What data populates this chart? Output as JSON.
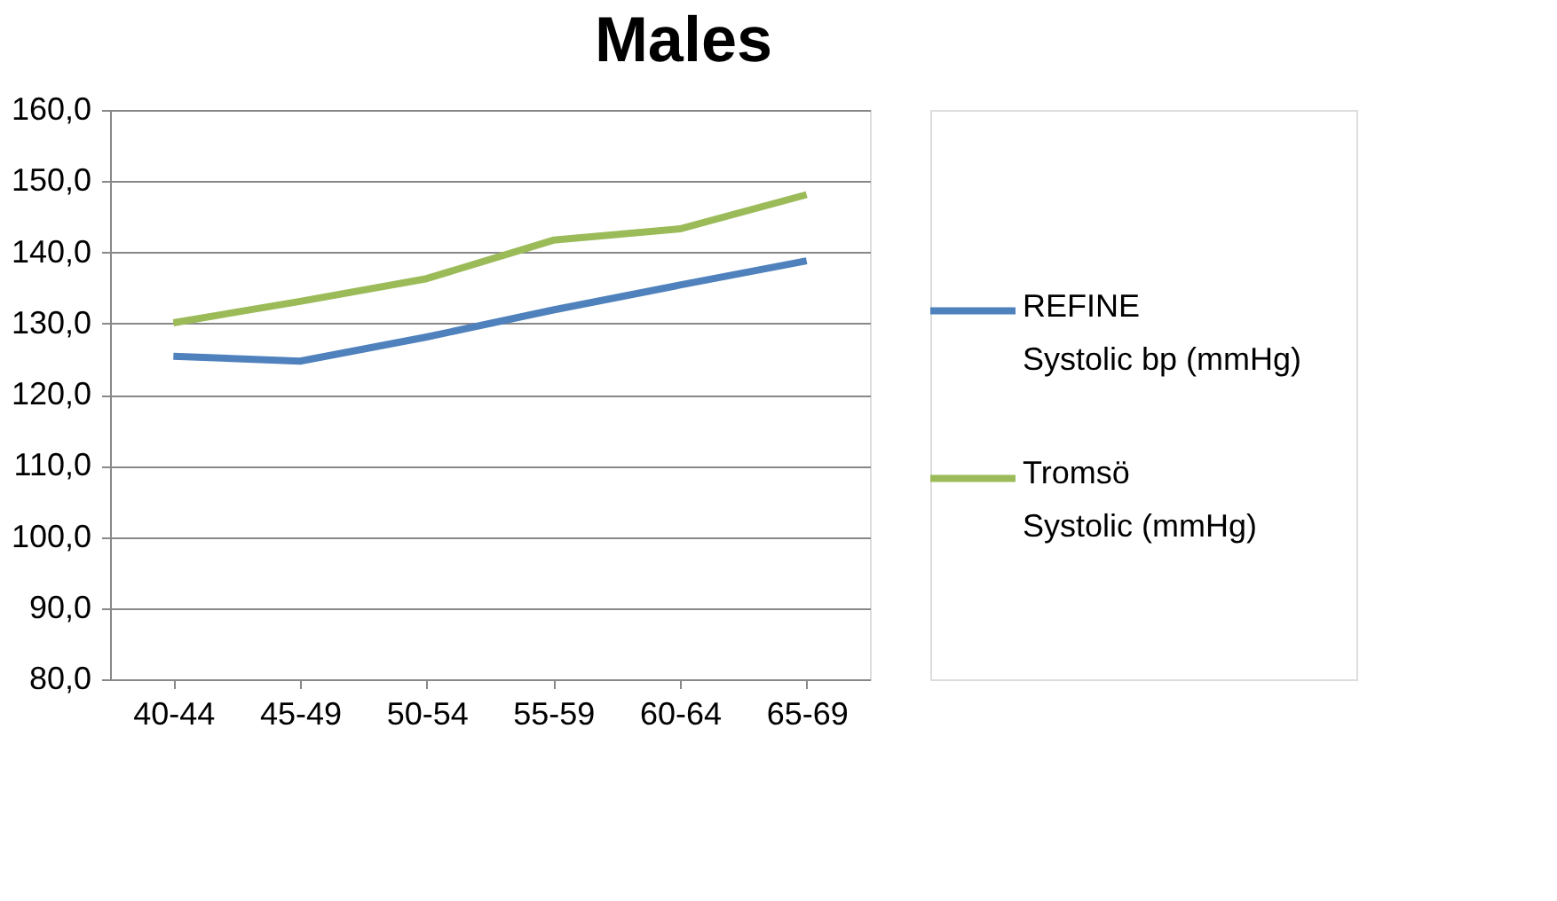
{
  "chart_data": {
    "type": "line",
    "title": "Males",
    "categories": [
      "40-44",
      "45-49",
      "50-54",
      "55-59",
      "60-64",
      "65-69"
    ],
    "series": [
      {
        "name": "REFINE Systolic bp (mmHg)",
        "color": "#4f81bd",
        "values": [
          125.4,
          124.7,
          128.1,
          131.9,
          135.4,
          138.8
        ]
      },
      {
        "name": "Tromsö Systolic (mmHg)",
        "color": "#9bbb59",
        "values": [
          130.1,
          133.1,
          136.3,
          141.7,
          143.3,
          148.1
        ]
      }
    ],
    "ylim": [
      80,
      160
    ],
    "yticks": [
      {
        "value": 80,
        "label": "80,0"
      },
      {
        "value": 90,
        "label": "90,0"
      },
      {
        "value": 100,
        "label": "100,0"
      },
      {
        "value": 110,
        "label": "110,0"
      },
      {
        "value": 120,
        "label": "120,0"
      },
      {
        "value": 130,
        "label": "130,0"
      },
      {
        "value": 140,
        "label": "140,0"
      },
      {
        "value": 150,
        "label": "150,0"
      },
      {
        "value": 160,
        "label": "160,0"
      }
    ],
    "grid": "y",
    "legend": "right",
    "marker": "none",
    "line_style": "solid"
  }
}
